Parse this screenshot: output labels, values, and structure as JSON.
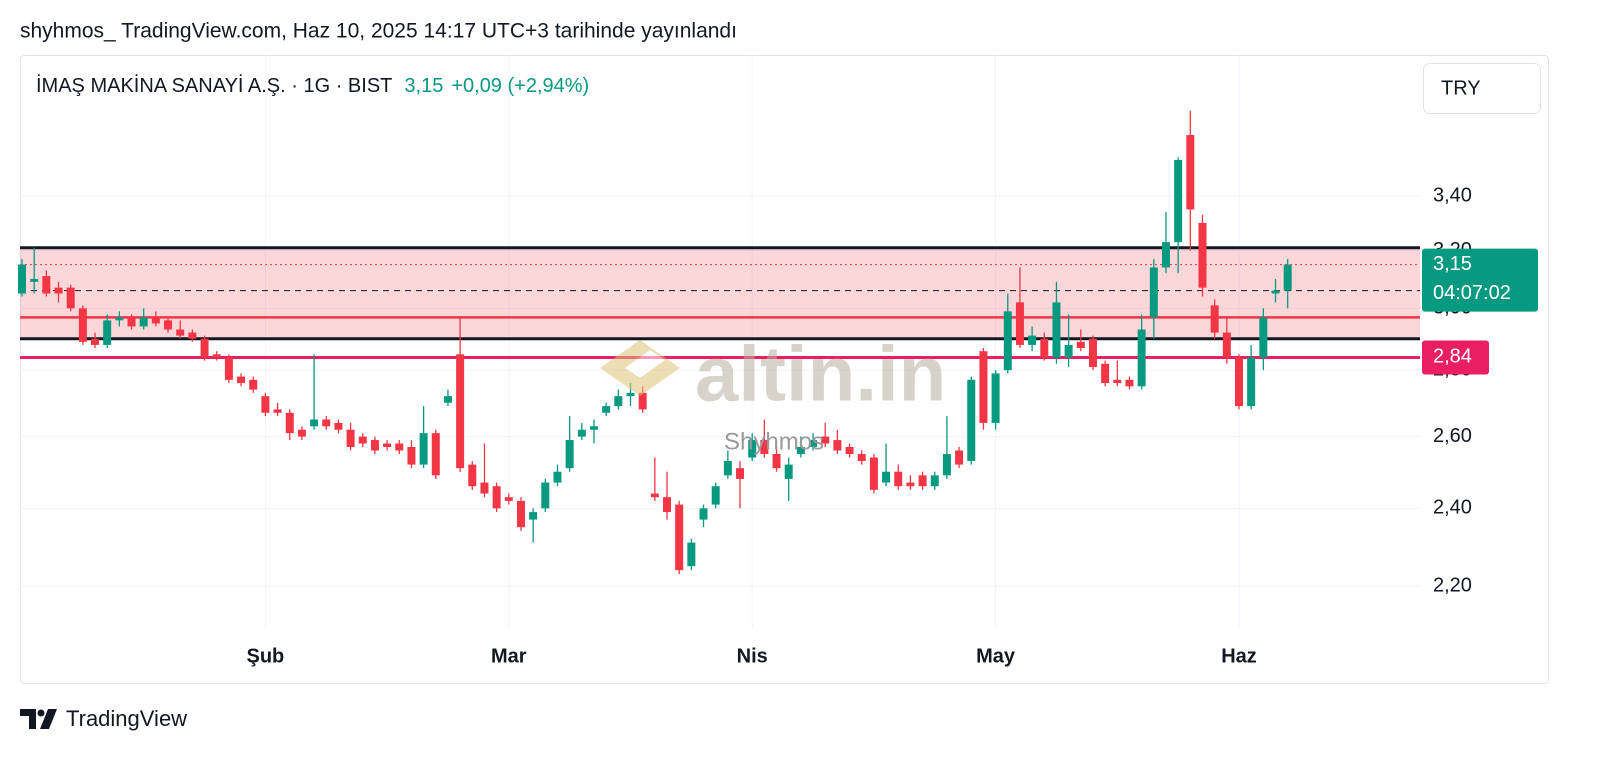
{
  "header": "shyhmos_ TradingView.com, Haz 10, 2025 14:17 UTC+3 tarihinde yayınlandı",
  "footer": "TradingView",
  "chart_data": {
    "type": "candlestick",
    "title": "İMAŞ MAKİNA SANAYİ A.Ş. · 1G · BIST",
    "price_text": "3,15",
    "change_text": "+0,09 (+2,94%)",
    "currency": "TRY",
    "watermark": "altin.in",
    "author_watermark": "Shyhmos",
    "log_scale": true,
    "grid": true,
    "up_color": "#089981",
    "down_color": "#f23645",
    "ylim": [
      2.1,
      3.98
    ],
    "yticks": [
      {
        "value": 2.2,
        "label": "2,20"
      },
      {
        "value": 2.4,
        "label": "2,40"
      },
      {
        "value": 2.6,
        "label": "2,60"
      },
      {
        "value": 2.8,
        "label": "2,80"
      },
      {
        "value": 3.0,
        "label": "3,00"
      },
      {
        "value": 3.2,
        "label": "3,20"
      },
      {
        "value": 3.4,
        "label": "3,40"
      }
    ],
    "categories": [
      null,
      null,
      null,
      null,
      null,
      null,
      null,
      null,
      null,
      null,
      null,
      null,
      null,
      null,
      null,
      null,
      null,
      null,
      null,
      null,
      "Şub",
      null,
      null,
      null,
      null,
      null,
      null,
      null,
      null,
      null,
      null,
      null,
      null,
      null,
      null,
      null,
      null,
      null,
      null,
      null,
      "Mar",
      null,
      null,
      null,
      null,
      null,
      null,
      null,
      null,
      null,
      null,
      null,
      null,
      null,
      null,
      null,
      null,
      null,
      null,
      null,
      "Nis",
      null,
      null,
      null,
      null,
      null,
      null,
      null,
      null,
      null,
      null,
      null,
      null,
      null,
      null,
      null,
      null,
      null,
      null,
      null,
      "May",
      null,
      null,
      null,
      null,
      null,
      null,
      null,
      null,
      null,
      null,
      null,
      null,
      null,
      null,
      null,
      null,
      null,
      null,
      null,
      "Haz",
      null,
      null,
      null,
      null
    ],
    "open": [
      3.05,
      3.09,
      3.11,
      3.07,
      3.07,
      3.0,
      2.9,
      2.88,
      2.96,
      2.97,
      2.94,
      2.97,
      2.96,
      2.93,
      2.92,
      2.9,
      2.85,
      2.84,
      2.78,
      2.77,
      2.72,
      2.68,
      2.67,
      2.62,
      2.63,
      2.65,
      2.64,
      2.62,
      2.6,
      2.59,
      2.58,
      2.58,
      2.57,
      2.52,
      2.61,
      2.7,
      2.85,
      2.52,
      2.47,
      2.46,
      2.43,
      2.42,
      2.37,
      2.4,
      2.47,
      2.51,
      2.6,
      2.62,
      2.67,
      2.69,
      2.72,
      2.73,
      2.44,
      2.43,
      2.41,
      2.25,
      2.37,
      2.41,
      2.49,
      2.51,
      2.54,
      2.59,
      2.55,
      2.48,
      2.55,
      2.57,
      2.6,
      2.59,
      2.57,
      2.55,
      2.54,
      2.47,
      2.5,
      2.47,
      2.49,
      2.46,
      2.49,
      2.56,
      2.53,
      2.86,
      2.64,
      2.8,
      3.02,
      2.88,
      2.9,
      2.84,
      2.84,
      2.89,
      2.9,
      2.82,
      2.77,
      2.77,
      2.75,
      2.97,
      3.14,
      3.23,
      3.64,
      3.3,
      3.01,
      2.92,
      2.84,
      2.69,
      2.84,
      3.05,
      3.06
    ],
    "high": [
      3.17,
      3.21,
      3.13,
      3.09,
      3.08,
      3.01,
      2.92,
      2.98,
      2.99,
      2.98,
      3.0,
      2.99,
      2.97,
      2.96,
      2.93,
      2.91,
      2.86,
      2.85,
      2.79,
      2.78,
      2.73,
      2.7,
      2.68,
      2.63,
      2.85,
      2.66,
      2.65,
      2.64,
      2.61,
      2.6,
      2.59,
      2.59,
      2.59,
      2.69,
      2.62,
      2.74,
      2.97,
      2.53,
      2.58,
      2.47,
      2.44,
      2.43,
      2.4,
      2.48,
      2.52,
      2.66,
      2.64,
      2.65,
      2.7,
      2.74,
      2.76,
      2.75,
      2.54,
      2.5,
      2.42,
      2.32,
      2.41,
      2.47,
      2.56,
      2.53,
      2.61,
      2.65,
      2.57,
      2.54,
      2.6,
      2.61,
      2.64,
      2.62,
      2.58,
      2.56,
      2.55,
      2.58,
      2.52,
      2.49,
      2.5,
      2.5,
      2.66,
      2.57,
      2.78,
      2.87,
      2.8,
      3.05,
      3.14,
      2.94,
      2.92,
      3.09,
      2.98,
      2.93,
      2.91,
      2.83,
      2.83,
      2.78,
      2.98,
      3.17,
      3.34,
      3.55,
      3.74,
      3.33,
      3.03,
      2.97,
      2.85,
      2.88,
      3.0,
      3.1,
      3.17
    ],
    "low": [
      3.04,
      3.05,
      3.04,
      3.02,
      2.99,
      2.88,
      2.87,
      2.87,
      2.94,
      2.93,
      2.93,
      2.94,
      2.92,
      2.9,
      2.89,
      2.83,
      2.83,
      2.76,
      2.75,
      2.73,
      2.66,
      2.66,
      2.59,
      2.59,
      2.62,
      2.62,
      2.61,
      2.56,
      2.57,
      2.55,
      2.56,
      2.55,
      2.51,
      2.51,
      2.48,
      2.69,
      2.5,
      2.45,
      2.43,
      2.39,
      2.41,
      2.34,
      2.31,
      2.39,
      2.46,
      2.5,
      2.59,
      2.58,
      2.66,
      2.68,
      2.69,
      2.67,
      2.42,
      2.37,
      2.23,
      2.24,
      2.35,
      2.4,
      2.48,
      2.4,
      2.53,
      2.54,
      2.5,
      2.42,
      2.54,
      2.56,
      2.57,
      2.55,
      2.54,
      2.52,
      2.44,
      2.46,
      2.45,
      2.45,
      2.45,
      2.45,
      2.48,
      2.51,
      2.52,
      2.62,
      2.62,
      2.79,
      2.87,
      2.86,
      2.83,
      2.82,
      2.81,
      2.86,
      2.8,
      2.75,
      2.75,
      2.74,
      2.74,
      2.9,
      3.12,
      3.12,
      3.2,
      3.04,
      2.9,
      2.82,
      2.68,
      2.68,
      2.8,
      3.02,
      3.0
    ],
    "close": [
      3.15,
      3.1,
      3.05,
      3.05,
      3.0,
      2.89,
      2.88,
      2.96,
      2.97,
      2.94,
      2.97,
      2.95,
      2.93,
      2.91,
      2.9,
      2.84,
      2.84,
      2.77,
      2.76,
      2.74,
      2.67,
      2.67,
      2.61,
      2.6,
      2.65,
      2.63,
      2.62,
      2.57,
      2.58,
      2.56,
      2.57,
      2.56,
      2.52,
      2.61,
      2.49,
      2.72,
      2.51,
      2.46,
      2.44,
      2.4,
      2.42,
      2.35,
      2.39,
      2.47,
      2.5,
      2.59,
      2.62,
      2.63,
      2.69,
      2.72,
      2.73,
      2.68,
      2.43,
      2.39,
      2.24,
      2.31,
      2.4,
      2.46,
      2.53,
      2.48,
      2.59,
      2.55,
      2.51,
      2.52,
      2.57,
      2.59,
      2.58,
      2.56,
      2.55,
      2.53,
      2.45,
      2.5,
      2.46,
      2.46,
      2.46,
      2.49,
      2.55,
      2.52,
      2.77,
      2.64,
      2.79,
      2.99,
      2.88,
      2.91,
      2.84,
      3.02,
      2.88,
      2.87,
      2.81,
      2.76,
      2.76,
      2.75,
      2.93,
      3.14,
      3.23,
      3.54,
      3.35,
      3.07,
      2.92,
      2.84,
      2.69,
      2.84,
      2.97,
      3.06,
      3.15
    ],
    "zone": {
      "from": 2.9,
      "to": 3.21,
      "color": "rgba(242,54,69,0.2)"
    },
    "lines": [
      {
        "value": 3.21,
        "color": "#131722",
        "width": 3,
        "style": "solid"
      },
      {
        "value": 2.9,
        "color": "#131722",
        "width": 3,
        "style": "solid"
      },
      {
        "value": 2.97,
        "color": "#f23645",
        "width": 2.5,
        "style": "solid"
      },
      {
        "value": 3.06,
        "color": "#131722",
        "width": 1,
        "style": "dashed"
      },
      {
        "value": 2.84,
        "color": "#e91e63",
        "width": 3,
        "style": "solid",
        "label": "2,84"
      },
      {
        "value": 3.15,
        "color": "#f23645",
        "width": 1,
        "style": "dotted",
        "label": "3,15",
        "badge_color": "#089981",
        "countdown": "04:07:02"
      }
    ]
  }
}
